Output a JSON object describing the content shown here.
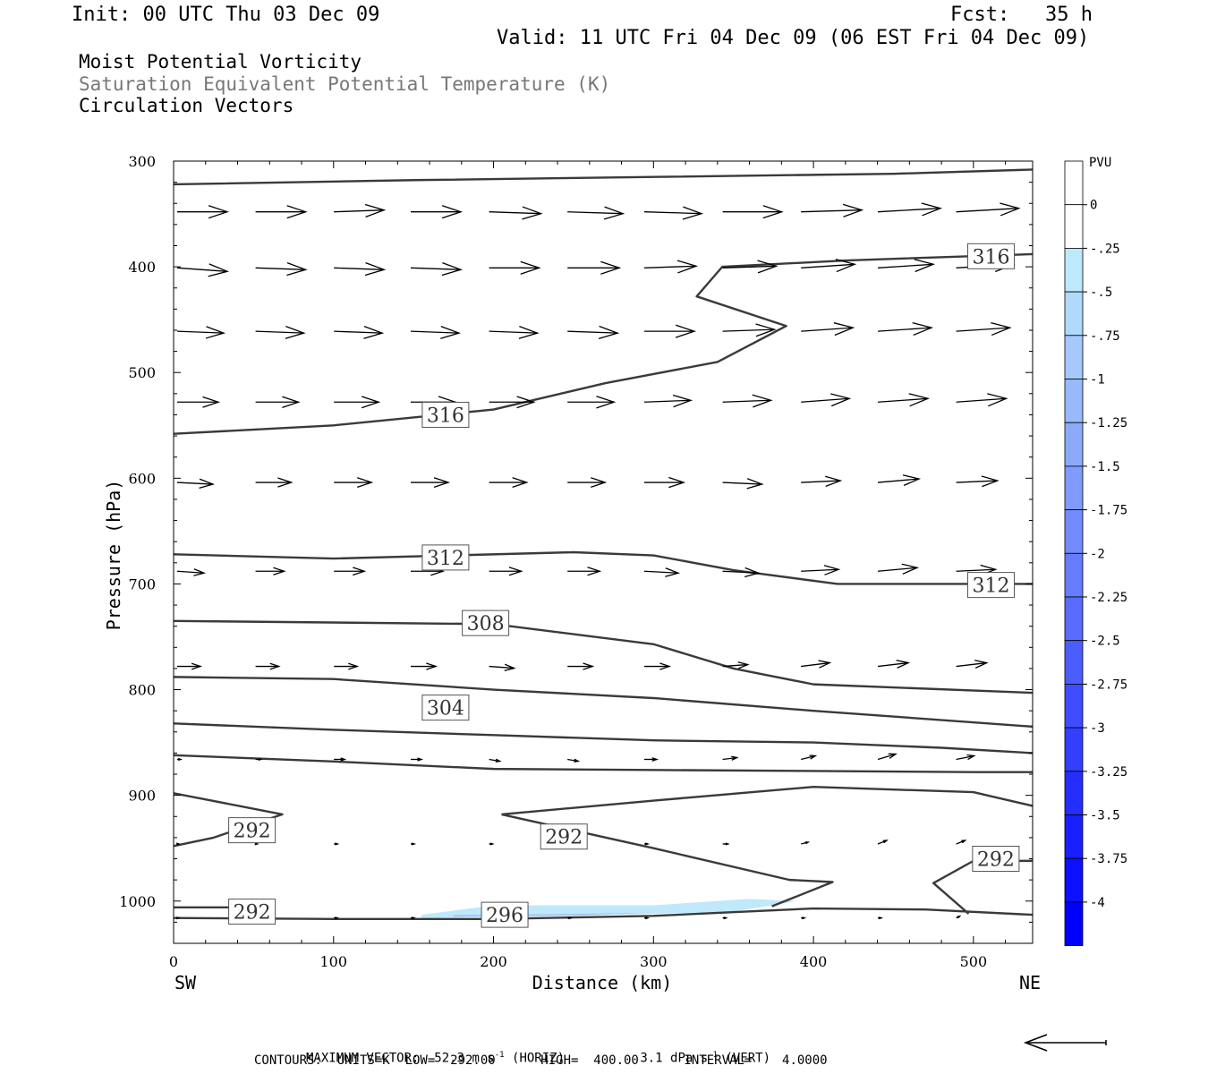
{
  "header": {
    "init": "Init: 00 UTC Thu 03 Dec 09",
    "fcst": "Fcst:   35 h",
    "valid": "Valid: 11 UTC Fri 04 Dec 09 (06 EST Fri 04 Dec 09)"
  },
  "titles": {
    "line1": "Moist Potential Vorticity",
    "line2": "Saturation Equivalent Potential Temperature (K)",
    "line3": "Circulation Vectors"
  },
  "footer": {
    "max_vector_label": "MAXIMUM VECTOR:",
    "max_vector_horiz": "52.3 m s",
    "horiz_tag": "(HORIZ)",
    "max_vector_vert": "3.1 dPa s",
    "vert_tag": "(VERT)",
    "exponent": "-1",
    "contours": "CONTOURS:  UNITS=K  LOW=  292.00      HIGH=  400.00      INTERVAL=    4.0000"
  },
  "colors": {
    "contour": "#3a3a3a",
    "pv_light": "#bfe8fb",
    "pv_dark": "#0000ff"
  },
  "chart_data": {
    "type": "cross-section",
    "xlabel": "Distance (km)",
    "ylabel": "Pressure (hPa)",
    "x_endpoints": [
      "SW",
      "NE"
    ],
    "xlim": [
      0,
      537
    ],
    "ylim": [
      1040,
      300
    ],
    "x_ticks": [
      0,
      100,
      200,
      300,
      400,
      500
    ],
    "y_ticks": [
      300,
      400,
      500,
      600,
      700,
      800,
      900,
      1000
    ],
    "colorbar": {
      "title": "PVU",
      "levels": [
        "0",
        "-.25",
        "-.5",
        "-.75",
        "-1",
        "-1.25",
        "-1.5",
        "-1.75",
        "-2",
        "-2.25",
        "-2.5",
        "-2.75",
        "-3",
        "-3.25",
        "-3.5",
        "-3.75",
        "-4"
      ]
    },
    "contour_labels": [
      {
        "text": "316",
        "x": 511,
        "p": 390
      },
      {
        "text": "316",
        "x": 170,
        "p": 540
      },
      {
        "text": "312",
        "x": 170,
        "p": 675
      },
      {
        "text": "312",
        "x": 511,
        "p": 701
      },
      {
        "text": "308",
        "x": 195,
        "p": 737
      },
      {
        "text": "304",
        "x": 170,
        "p": 817
      },
      {
        "text": "292",
        "x": 49,
        "p": 933
      },
      {
        "text": "292",
        "x": 244,
        "p": 939
      },
      {
        "text": "292",
        "x": 514,
        "p": 960
      },
      {
        "text": "292",
        "x": 49,
        "p": 1010
      },
      {
        "text": "296",
        "x": 207,
        "p": 1013
      }
    ],
    "contours": [
      {
        "points": [
          [
            0,
            322
          ],
          [
            150,
            318
          ],
          [
            300,
            315
          ],
          [
            450,
            312
          ],
          [
            537,
            308
          ]
        ]
      },
      {
        "points": [
          [
            0,
            558
          ],
          [
            100,
            550
          ],
          [
            200,
            535
          ],
          [
            270,
            510
          ],
          [
            340,
            490
          ],
          [
            383,
            456
          ],
          [
            327,
            428
          ],
          [
            343,
            400
          ],
          [
            420,
            394
          ],
          [
            537,
            388
          ]
        ]
      },
      {
        "points": [
          [
            0,
            672
          ],
          [
            100,
            676
          ],
          [
            250,
            670
          ],
          [
            300,
            673
          ],
          [
            350,
            687
          ],
          [
            415,
            700
          ],
          [
            537,
            700
          ]
        ]
      },
      {
        "points": [
          [
            0,
            735
          ],
          [
            200,
            738
          ],
          [
            300,
            757
          ],
          [
            350,
            780
          ],
          [
            400,
            795
          ],
          [
            537,
            803
          ]
        ]
      },
      {
        "points": [
          [
            0,
            788
          ],
          [
            100,
            790
          ],
          [
            200,
            800
          ],
          [
            300,
            808
          ],
          [
            400,
            820
          ],
          [
            537,
            835
          ]
        ]
      },
      {
        "points": [
          [
            0,
            832
          ],
          [
            100,
            838
          ],
          [
            200,
            843
          ],
          [
            300,
            848
          ],
          [
            400,
            850
          ],
          [
            480,
            855
          ],
          [
            537,
            860
          ]
        ]
      },
      {
        "points": [
          [
            0,
            862
          ],
          [
            100,
            868
          ],
          [
            200,
            875
          ],
          [
            300,
            876
          ],
          [
            400,
            877
          ],
          [
            500,
            878
          ],
          [
            537,
            878
          ]
        ]
      },
      {
        "points": [
          [
            0,
            898
          ],
          [
            68,
            918
          ],
          [
            25,
            940
          ],
          [
            0,
            948
          ]
        ]
      },
      {
        "points": [
          [
            205,
            918
          ],
          [
            300,
            905
          ],
          [
            400,
            892
          ],
          [
            500,
            897
          ],
          [
            537,
            910
          ]
        ]
      },
      {
        "points": [
          [
            205,
            918
          ],
          [
            300,
            950
          ],
          [
            385,
            980
          ],
          [
            412,
            982
          ],
          [
            374,
            1005
          ]
        ]
      },
      {
        "points": [
          [
            537,
            962
          ],
          [
            500,
            962
          ],
          [
            475,
            983
          ],
          [
            497,
            1012
          ]
        ]
      },
      {
        "points": [
          [
            0,
            1016
          ],
          [
            100,
            1017
          ],
          [
            200,
            1017
          ],
          [
            300,
            1014
          ],
          [
            400,
            1007
          ],
          [
            470,
            1008
          ],
          [
            537,
            1013
          ]
        ]
      },
      {
        "points": [
          [
            0,
            1006
          ],
          [
            40,
            1006
          ]
        ]
      }
    ],
    "pv_shading": [
      {
        "level": "-.25",
        "points": [
          [
            155,
            1013
          ],
          [
            200,
            1004
          ],
          [
            300,
            1004
          ],
          [
            360,
            998
          ],
          [
            390,
            1000
          ],
          [
            350,
            1010
          ],
          [
            250,
            1014
          ],
          [
            155,
            1016
          ]
        ]
      },
      {
        "level": "-.5",
        "points": [
          [
            175,
            1013
          ],
          [
            250,
            1012
          ],
          [
            300,
            1011
          ],
          [
            250,
            1014
          ],
          [
            175,
            1015
          ]
        ]
      }
    ],
    "vectors": [
      {
        "p": 348,
        "x": [
          0,
          49,
          98,
          146,
          195,
          244,
          292,
          341,
          390,
          438,
          487
        ],
        "u": [
          28,
          28,
          28,
          28,
          29,
          31,
          32,
          33,
          34,
          35,
          35
        ],
        "w": [
          0,
          0,
          1,
          0,
          -1,
          -1,
          -1,
          0,
          1,
          2,
          2
        ]
      },
      {
        "p": 401,
        "x": [
          0,
          49,
          98,
          146,
          195,
          244,
          292,
          341,
          390,
          438,
          487
        ],
        "u": [
          28,
          28,
          28,
          28,
          28,
          29,
          29,
          30,
          30,
          31,
          32
        ],
        "w": [
          -2,
          -1,
          -1,
          -1,
          0,
          0,
          1,
          1,
          2,
          2,
          2
        ]
      },
      {
        "p": 461,
        "x": [
          0,
          49,
          98,
          146,
          195,
          244,
          292,
          341,
          390,
          438,
          487
        ],
        "u": [
          26,
          27,
          27,
          27,
          27,
          28,
          28,
          29,
          29,
          30,
          30
        ],
        "w": [
          -1,
          -1,
          -1,
          -1,
          -1,
          -1,
          0,
          1,
          2,
          2,
          2
        ]
      },
      {
        "p": 528,
        "x": [
          0,
          49,
          98,
          146,
          195,
          244,
          292,
          341,
          390,
          438,
          487
        ],
        "u": [
          23,
          24,
          25,
          25,
          25,
          26,
          26,
          27,
          27,
          28,
          28
        ],
        "w": [
          0,
          0,
          0,
          0,
          0,
          0,
          1,
          1,
          2,
          2,
          2
        ]
      },
      {
        "p": 604,
        "x": [
          0,
          49,
          98,
          146,
          195,
          244,
          292,
          341,
          390,
          438,
          487
        ],
        "u": [
          20,
          20,
          21,
          21,
          21,
          21,
          22,
          22,
          22,
          23,
          23
        ],
        "w": [
          -1,
          0,
          0,
          0,
          0,
          0,
          0,
          -1,
          1,
          2,
          1
        ]
      },
      {
        "p": 688,
        "x": [
          0,
          49,
          98,
          146,
          195,
          244,
          292,
          341,
          390,
          438,
          487
        ],
        "u": [
          15,
          16,
          17,
          18,
          18,
          18,
          19,
          20,
          21,
          22,
          22
        ],
        "w": [
          -1,
          0,
          0,
          0,
          0,
          0,
          -1,
          -1,
          1,
          2,
          1
        ]
      },
      {
        "p": 778,
        "x": [
          0,
          49,
          98,
          146,
          195,
          244,
          292,
          341,
          390,
          438,
          487
        ],
        "u": [
          13,
          13,
          13,
          14,
          14,
          14,
          14,
          14,
          16,
          17,
          17
        ],
        "w": [
          0,
          0,
          0,
          0,
          -1,
          0,
          0,
          1,
          2,
          2,
          2
        ]
      },
      {
        "p": 866,
        "x": [
          0,
          49,
          98,
          146,
          195,
          244,
          292,
          341,
          390,
          438,
          487
        ],
        "u": [
          2,
          3,
          6,
          6,
          6,
          6,
          7,
          8,
          8,
          10,
          10
        ],
        "w": [
          0,
          0,
          0,
          0,
          -1,
          -1,
          0,
          1,
          2,
          3,
          2
        ]
      },
      {
        "p": 946,
        "x": [
          0,
          49,
          98,
          146,
          195,
          244,
          292,
          341,
          390,
          438,
          487
        ],
        "u": [
          1,
          1,
          2,
          2,
          2,
          2,
          2,
          3,
          4,
          5,
          5
        ],
        "w": [
          0,
          0,
          0,
          0,
          0,
          0,
          0,
          0,
          1,
          2,
          2
        ]
      },
      {
        "p": 1016,
        "x": [
          0,
          49,
          98,
          146,
          195,
          244,
          292,
          341,
          390,
          438,
          487
        ],
        "u": [
          1,
          1,
          2,
          2,
          2,
          2,
          2,
          2,
          2,
          2,
          2
        ],
        "w": [
          0,
          0,
          0,
          0,
          0,
          0,
          0,
          0,
          0,
          0,
          1
        ]
      }
    ]
  }
}
